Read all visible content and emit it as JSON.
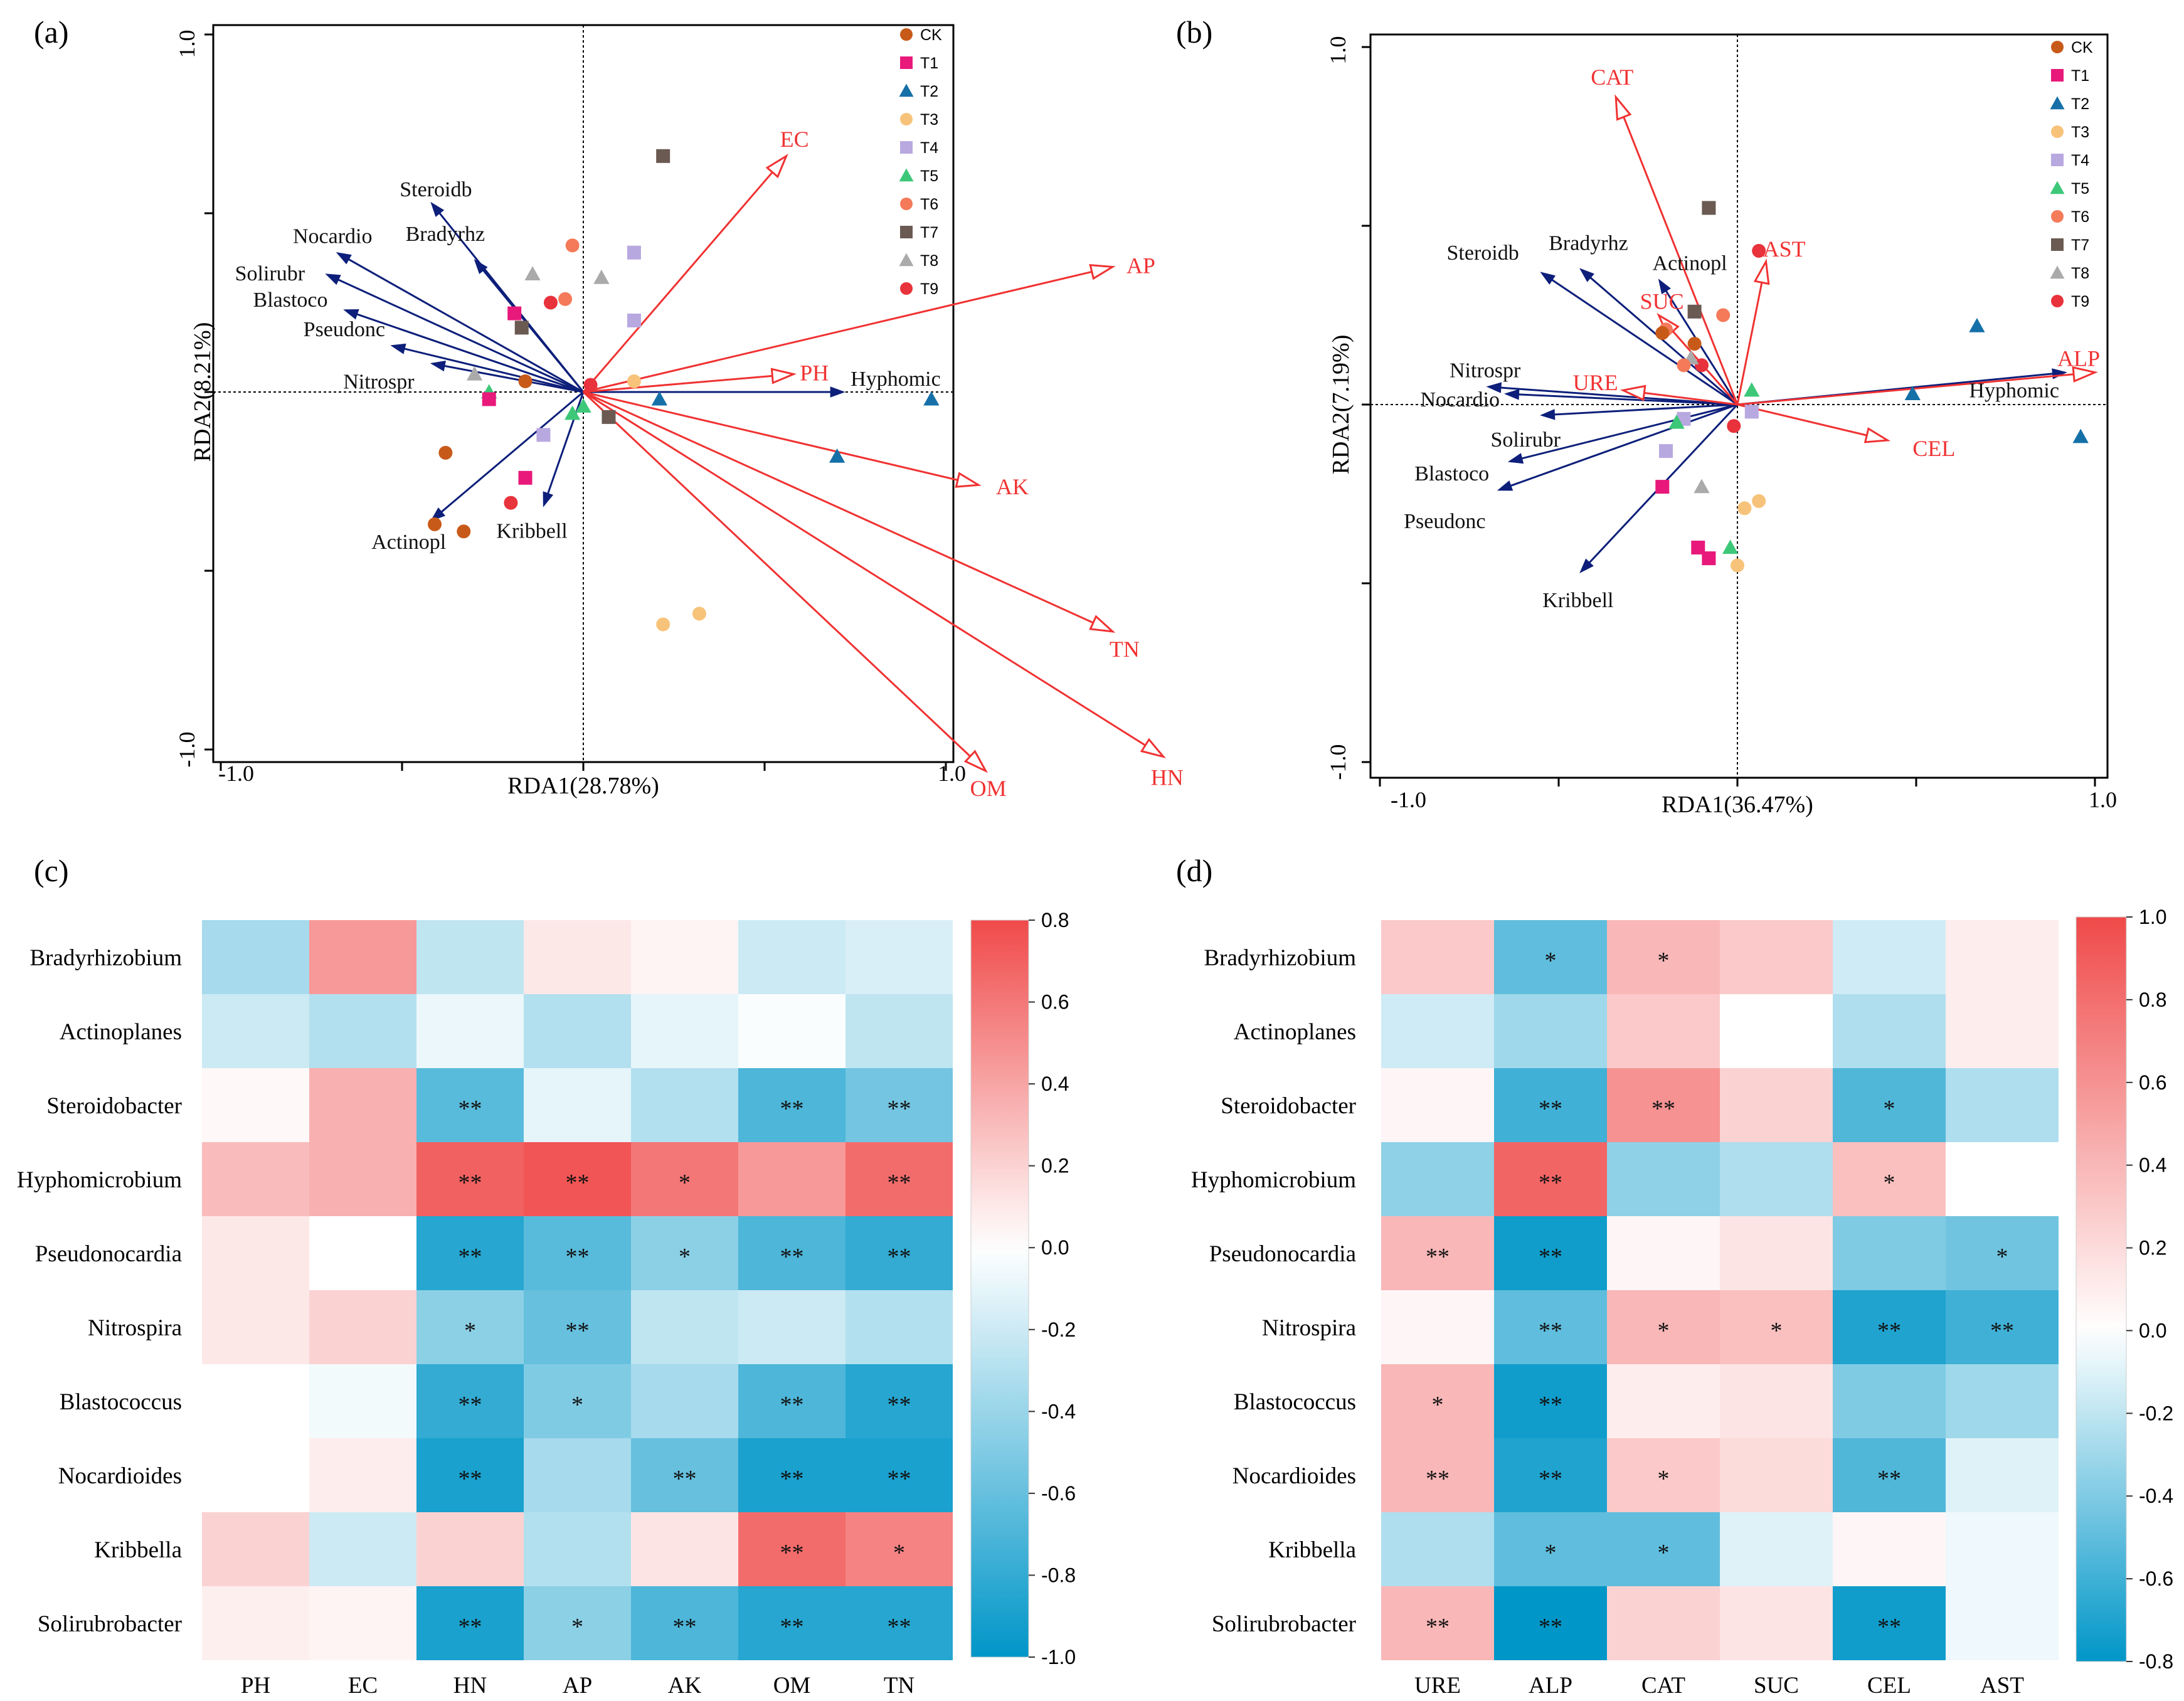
{
  "colors": {
    "env_arrow": "#f03232",
    "species_arrow": "#0d1f7a",
    "axis": "#000000",
    "heat_low": "#0096c8",
    "heat_mid": "#ffffff",
    "heat_high": "#f04a4a"
  },
  "chart_data": [
    {
      "panel": "(a)",
      "type": "scatter",
      "subtype": "rda_biplot",
      "xlabel": "RDA1(28.78%)",
      "ylabel": "RDA2(8.21%)",
      "xlim": [
        -1.0,
        1.0
      ],
      "ylim": [
        -1.0,
        1.0
      ],
      "x_ticks": [
        "-1.0",
        "1.0"
      ],
      "y_ticks": [
        "1.0",
        "-1.0"
      ],
      "legend_position": "top-right",
      "legend": [
        {
          "name": "CK",
          "marker": "circle",
          "color": "#c85a19"
        },
        {
          "name": "T1",
          "marker": "square",
          "color": "#e8197a"
        },
        {
          "name": "T2",
          "marker": "triangle",
          "color": "#1570a8"
        },
        {
          "name": "T3",
          "marker": "circle",
          "color": "#f7c37a"
        },
        {
          "name": "T4",
          "marker": "square",
          "color": "#b8a8e0"
        },
        {
          "name": "T5",
          "marker": "triangle",
          "color": "#3cc878"
        },
        {
          "name": "T6",
          "marker": "circle",
          "color": "#f47a5a"
        },
        {
          "name": "T7",
          "marker": "square",
          "color": "#6a5a52"
        },
        {
          "name": "T8",
          "marker": "triangle",
          "color": "#aaaaaa"
        },
        {
          "name": "T9",
          "marker": "circle",
          "color": "#e8323c"
        }
      ],
      "env_arrows": [
        {
          "label": "EC",
          "x": 0.56,
          "y": 0.66
        },
        {
          "label": "AP",
          "x": 1.46,
          "y": 0.35
        },
        {
          "label": "PH",
          "x": 0.58,
          "y": 0.05
        },
        {
          "label": "AK",
          "x": 1.09,
          "y": -0.26
        },
        {
          "label": "TN",
          "x": 1.46,
          "y": -0.67
        },
        {
          "label": "OM",
          "x": 1.11,
          "y": -1.06
        },
        {
          "label": "HN",
          "x": 1.6,
          "y": -1.02
        }
      ],
      "species_arrows": [
        {
          "label": "Steroidb",
          "x": -0.42,
          "y": 0.53
        },
        {
          "label": "Nocardio",
          "x": -0.68,
          "y": 0.39
        },
        {
          "label": "Solirubr",
          "x": -0.71,
          "y": 0.33
        },
        {
          "label": "Blastoco",
          "x": -0.66,
          "y": 0.23
        },
        {
          "label": "Pseudonc",
          "x": -0.53,
          "y": 0.13
        },
        {
          "label": "Bradyrhz",
          "x": -0.3,
          "y": 0.37
        },
        {
          "label": "Nitrospr",
          "x": -0.42,
          "y": 0.08
        },
        {
          "label": "Hyphomic",
          "x": 0.72,
          "y": 0.0
        },
        {
          "label": "Kribbell",
          "x": -0.11,
          "y": -0.32
        },
        {
          "label": "Actinopl",
          "x": -0.42,
          "y": -0.36
        }
      ],
      "points": [
        {
          "g": "T7",
          "x": 0.22,
          "y": 0.66
        },
        {
          "g": "T6",
          "x": -0.03,
          "y": 0.41
        },
        {
          "g": "T4",
          "x": 0.14,
          "y": 0.39
        },
        {
          "g": "T8",
          "x": -0.14,
          "y": 0.33
        },
        {
          "g": "T8",
          "x": 0.05,
          "y": 0.32
        },
        {
          "g": "T6",
          "x": -0.05,
          "y": 0.26
        },
        {
          "g": "T9",
          "x": -0.09,
          "y": 0.25
        },
        {
          "g": "T1",
          "x": -0.19,
          "y": 0.22
        },
        {
          "g": "T7",
          "x": -0.17,
          "y": 0.18
        },
        {
          "g": "T4",
          "x": 0.14,
          "y": 0.2
        },
        {
          "g": "T8",
          "x": -0.3,
          "y": 0.05
        },
        {
          "g": "CK",
          "x": -0.16,
          "y": 0.03
        },
        {
          "g": "T3",
          "x": 0.14,
          "y": 0.03
        },
        {
          "g": "T9",
          "x": 0.02,
          "y": 0.02
        },
        {
          "g": "T5",
          "x": -0.26,
          "y": 0.0
        },
        {
          "g": "T1",
          "x": -0.26,
          "y": -0.02
        },
        {
          "g": "T2",
          "x": 0.21,
          "y": -0.02
        },
        {
          "g": "T2",
          "x": 0.96,
          "y": -0.02
        },
        {
          "g": "T5",
          "x": 0.0,
          "y": -0.04
        },
        {
          "g": "T5",
          "x": -0.03,
          "y": -0.06
        },
        {
          "g": "T7",
          "x": 0.07,
          "y": -0.07
        },
        {
          "g": "T4",
          "x": -0.11,
          "y": -0.12
        },
        {
          "g": "CK",
          "x": -0.38,
          "y": -0.17
        },
        {
          "g": "T2",
          "x": 0.7,
          "y": -0.18
        },
        {
          "g": "T1",
          "x": -0.16,
          "y": -0.24
        },
        {
          "g": "T9",
          "x": -0.2,
          "y": -0.31
        },
        {
          "g": "CK",
          "x": -0.41,
          "y": -0.37
        },
        {
          "g": "CK",
          "x": -0.33,
          "y": -0.39
        },
        {
          "g": "T3",
          "x": 0.32,
          "y": -0.62
        },
        {
          "g": "T3",
          "x": 0.22,
          "y": -0.65
        }
      ]
    },
    {
      "panel": "(b)",
      "type": "scatter",
      "subtype": "rda_biplot",
      "xlabel": "RDA1(36.47%)",
      "ylabel": "RDA2(7.19%)",
      "xlim": [
        -1.0,
        1.0
      ],
      "ylim": [
        -1.0,
        1.0
      ],
      "x_ticks": [
        "-1.0",
        "1.0"
      ],
      "y_ticks": [
        "1.0",
        "-1.0"
      ],
      "legend_position": "top-right",
      "legend": [
        {
          "name": "CK",
          "marker": "circle",
          "color": "#c85a19"
        },
        {
          "name": "T1",
          "marker": "square",
          "color": "#e8197a"
        },
        {
          "name": "T2",
          "marker": "triangle",
          "color": "#1570a8"
        },
        {
          "name": "T3",
          "marker": "circle",
          "color": "#f7c37a"
        },
        {
          "name": "T4",
          "marker": "square",
          "color": "#b8a8e0"
        },
        {
          "name": "T5",
          "marker": "triangle",
          "color": "#3cc878"
        },
        {
          "name": "T6",
          "marker": "circle",
          "color": "#f47a5a"
        },
        {
          "name": "T7",
          "marker": "square",
          "color": "#6a5a52"
        },
        {
          "name": "T8",
          "marker": "triangle",
          "color": "#aaaaaa"
        },
        {
          "name": "T9",
          "marker": "circle",
          "color": "#e8323c"
        }
      ],
      "env_arrows": [
        {
          "label": "CAT",
          "x": -0.34,
          "y": 0.86
        },
        {
          "label": "AST",
          "x": 0.08,
          "y": 0.4
        },
        {
          "label": "SUC",
          "x": -0.22,
          "y": 0.25
        },
        {
          "label": "URE",
          "x": -0.32,
          "y": 0.04
        },
        {
          "label": "ALP",
          "x": 1.0,
          "y": 0.09
        },
        {
          "label": "CEL",
          "x": 0.42,
          "y": -0.1
        }
      ],
      "species_arrows": [
        {
          "label": "Steroidb",
          "x": -0.55,
          "y": 0.37
        },
        {
          "label": "Bradyrhz",
          "x": -0.44,
          "y": 0.38
        },
        {
          "label": "Actinopl",
          "x": -0.22,
          "y": 0.35
        },
        {
          "label": "Nitrospr",
          "x": -0.7,
          "y": 0.05
        },
        {
          "label": "Nocardio",
          "x": -0.65,
          "y": 0.03
        },
        {
          "label": "Solirubr",
          "x": -0.55,
          "y": -0.03
        },
        {
          "label": "Blastoco",
          "x": -0.64,
          "y": -0.16
        },
        {
          "label": "Pseudonc",
          "x": -0.67,
          "y": -0.24
        },
        {
          "label": "Kribbell",
          "x": -0.44,
          "y": -0.47
        },
        {
          "label": "Hyphomic",
          "x": 0.92,
          "y": 0.09
        }
      ],
      "points": [
        {
          "g": "T7",
          "x": -0.08,
          "y": 0.55
        },
        {
          "g": "T9",
          "x": 0.06,
          "y": 0.43
        },
        {
          "g": "T7",
          "x": -0.12,
          "y": 0.26
        },
        {
          "g": "T6",
          "x": -0.04,
          "y": 0.25
        },
        {
          "g": "T6",
          "x": -0.2,
          "y": 0.21
        },
        {
          "g": "CK",
          "x": -0.21,
          "y": 0.2
        },
        {
          "g": "T2",
          "x": 0.67,
          "y": 0.22
        },
        {
          "g": "CK",
          "x": -0.12,
          "y": 0.17
        },
        {
          "g": "T9",
          "x": -0.1,
          "y": 0.11
        },
        {
          "g": "T8",
          "x": -0.13,
          "y": 0.13
        },
        {
          "g": "T6",
          "x": -0.15,
          "y": 0.11
        },
        {
          "g": "T5",
          "x": 0.04,
          "y": 0.04
        },
        {
          "g": "T2",
          "x": 0.49,
          "y": 0.03
        },
        {
          "g": "T4",
          "x": 0.04,
          "y": -0.02
        },
        {
          "g": "T4",
          "x": -0.15,
          "y": -0.04
        },
        {
          "g": "T5",
          "x": -0.17,
          "y": -0.05
        },
        {
          "g": "T9",
          "x": -0.01,
          "y": -0.06
        },
        {
          "g": "T2",
          "x": 0.96,
          "y": -0.09
        },
        {
          "g": "T4",
          "x": -0.2,
          "y": -0.13
        },
        {
          "g": "T1",
          "x": -0.21,
          "y": -0.23
        },
        {
          "g": "T8",
          "x": -0.1,
          "y": -0.23
        },
        {
          "g": "T3",
          "x": 0.06,
          "y": -0.27
        },
        {
          "g": "T3",
          "x": 0.02,
          "y": -0.29
        },
        {
          "g": "T5",
          "x": -0.02,
          "y": -0.4
        },
        {
          "g": "T1",
          "x": -0.11,
          "y": -0.4
        },
        {
          "g": "T1",
          "x": -0.08,
          "y": -0.43
        },
        {
          "g": "T3",
          "x": 0.0,
          "y": -0.45
        }
      ]
    },
    {
      "panel": "(c)",
      "type": "heatmap",
      "rows": [
        "Bradyrhizobium",
        "Actinoplanes",
        "Steroidobacter",
        "Hyphomicrobium",
        "Pseudonocardia",
        "Nitrospira",
        "Blastococcus",
        "Nocardioides",
        "Kribbella",
        "Solirubrobacter"
      ],
      "cols": [
        "PH",
        "EC",
        "HN",
        "AP",
        "AK",
        "OM",
        "TN"
      ],
      "values": [
        [
          -0.35,
          0.45,
          -0.25,
          0.1,
          0.05,
          -0.2,
          -0.15
        ],
        [
          -0.2,
          -0.3,
          -0.08,
          -0.3,
          -0.1,
          -0.02,
          -0.25
        ],
        [
          0.03,
          0.35,
          -0.65,
          -0.1,
          -0.3,
          -0.7,
          -0.55
        ],
        [
          0.3,
          0.35,
          0.7,
          0.75,
          0.6,
          0.45,
          0.65
        ],
        [
          0.1,
          0.0,
          -0.85,
          -0.65,
          -0.45,
          -0.7,
          -0.8
        ],
        [
          0.1,
          0.2,
          -0.45,
          -0.6,
          -0.25,
          -0.2,
          -0.3
        ],
        [
          0.0,
          -0.05,
          -0.8,
          -0.5,
          -0.35,
          -0.7,
          -0.85
        ],
        [
          0.0,
          0.08,
          -0.9,
          -0.35,
          -0.6,
          -0.9,
          -0.9
        ],
        [
          0.2,
          -0.2,
          0.2,
          -0.3,
          0.12,
          0.65,
          0.55
        ],
        [
          0.07,
          0.05,
          -0.9,
          -0.45,
          -0.7,
          -0.85,
          -0.85
        ]
      ],
      "stars": [
        [
          "",
          "",
          "",
          "",
          "",
          "",
          ""
        ],
        [
          "",
          "",
          "",
          "",
          "",
          "",
          ""
        ],
        [
          "",
          "",
          "**",
          "",
          "",
          "**",
          "**"
        ],
        [
          "",
          "",
          "**",
          "**",
          "*",
          "",
          "**"
        ],
        [
          "",
          "",
          "**",
          "**",
          "*",
          "**",
          "**"
        ],
        [
          "",
          "",
          "*",
          "**",
          "",
          "",
          ""
        ],
        [
          "",
          "",
          "**",
          "*",
          "",
          "**",
          "**"
        ],
        [
          "",
          "",
          "**",
          "",
          "**",
          "**",
          "**"
        ],
        [
          "",
          "",
          "",
          "",
          "",
          "**",
          "*"
        ],
        [
          "",
          "",
          "**",
          "*",
          "**",
          "**",
          "**"
        ]
      ],
      "vmin": -1.0,
      "vmax": 0.8,
      "colorbar_ticks": [
        0.8,
        0.6,
        0.4,
        0.2,
        0.0,
        -0.2,
        -0.4,
        -0.6,
        -0.8,
        -1.0
      ],
      "colorbar_labels": [
        "0.8",
        "0.6",
        "0.4",
        "0.2",
        "0.0",
        "-0.2",
        "-0.4",
        "-0.6",
        "-0.8",
        "-1.0"
      ]
    },
    {
      "panel": "(d)",
      "type": "heatmap",
      "rows": [
        "Bradyrhizobium",
        "Actinoplanes",
        "Steroidobacter",
        "Hyphomicrobium",
        "Pseudonocardia",
        "Nitrospira",
        "Blastococcus",
        "Nocardioides",
        "Kribbella",
        "Solirubrobacter"
      ],
      "cols": [
        "URE",
        "ALP",
        "CAT",
        "SUC",
        "CEL",
        "AST"
      ],
      "values": [
        [
          0.3,
          -0.5,
          0.4,
          0.3,
          -0.15,
          0.1
        ],
        [
          -0.15,
          -0.3,
          0.3,
          0.0,
          -0.25,
          0.1
        ],
        [
          0.05,
          -0.6,
          0.6,
          0.25,
          -0.55,
          -0.25
        ],
        [
          -0.35,
          0.85,
          -0.35,
          -0.25,
          0.35,
          0.0
        ],
        [
          0.4,
          -0.75,
          0.05,
          0.15,
          -0.4,
          -0.45
        ],
        [
          0.05,
          -0.5,
          0.4,
          0.35,
          -0.7,
          -0.6
        ],
        [
          0.4,
          -0.75,
          0.1,
          0.15,
          -0.4,
          -0.3
        ],
        [
          0.4,
          -0.7,
          0.3,
          0.2,
          -0.55,
          -0.1
        ],
        [
          -0.25,
          -0.5,
          -0.5,
          -0.1,
          0.05,
          -0.05
        ],
        [
          0.4,
          -0.8,
          0.25,
          0.15,
          -0.75,
          -0.05
        ]
      ],
      "stars": [
        [
          "",
          "*",
          "*",
          "",
          "",
          ""
        ],
        [
          "",
          "",
          "",
          "",
          "",
          ""
        ],
        [
          "",
          "**",
          "**",
          "",
          "*",
          ""
        ],
        [
          "",
          "**",
          "",
          "",
          "*",
          ""
        ],
        [
          "**",
          "**",
          "",
          "",
          "",
          "*"
        ],
        [
          "",
          "**",
          "*",
          "*",
          "**",
          "**"
        ],
        [
          "*",
          "**",
          "",
          "",
          "",
          ""
        ],
        [
          "**",
          "**",
          "*",
          "",
          "**",
          ""
        ],
        [
          "",
          "*",
          "*",
          "",
          "",
          ""
        ],
        [
          "**",
          "**",
          "",
          "",
          "**",
          ""
        ]
      ],
      "vmin": -0.8,
      "vmax": 1.0,
      "colorbar_ticks": [
        1.0,
        0.8,
        0.6,
        0.4,
        0.2,
        0.0,
        -0.2,
        -0.4,
        -0.6,
        -0.8
      ],
      "colorbar_labels": [
        "1.0",
        "0.8",
        "0.6",
        "0.4",
        "0.2",
        "0.0",
        "-0.2",
        "-0.4",
        "-0.6",
        "-0.8"
      ]
    }
  ]
}
